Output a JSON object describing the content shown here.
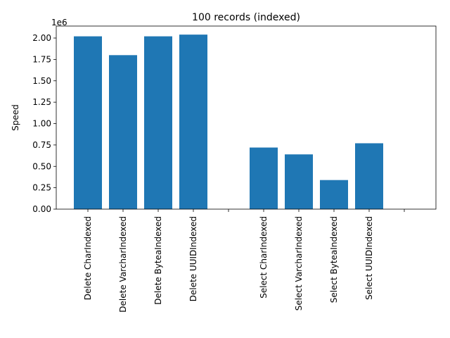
{
  "chart_data": {
    "type": "bar",
    "title": "100 records (indexed)",
    "ylabel": "Speed",
    "xlabel": "",
    "y_scale_label": "1e6",
    "y_multiplier": 1000000,
    "ylim": [
      0,
      2140000
    ],
    "y_ticks": [
      0,
      250000,
      500000,
      750000,
      1000000,
      1250000,
      1500000,
      1750000,
      2000000
    ],
    "y_tick_labels": [
      "0.00",
      "0.25",
      "0.50",
      "0.75",
      "1.00",
      "1.25",
      "1.50",
      "1.75",
      "2.00"
    ],
    "categories": [
      "Delete CharIndexed",
      "Delete VarcharIndexed",
      "Delete ByteaIndexed",
      "Delete UUIDIndexed",
      "",
      "Select CharIndexed",
      "Select VarcharIndexed",
      "Select ByteaIndexed",
      "Select UUIDIndexed",
      ""
    ],
    "values": [
      2020000,
      1800000,
      2020000,
      2040000,
      0,
      720000,
      640000,
      340000,
      770000,
      0
    ],
    "bar_color": "#1f77b4",
    "grid": false,
    "legend": "none"
  }
}
